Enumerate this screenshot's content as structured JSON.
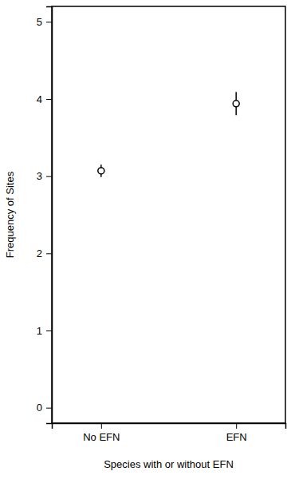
{
  "chart_data": {
    "type": "dot",
    "categories": [
      "No EFN",
      "EFN"
    ],
    "values": [
      3.07,
      3.94
    ],
    "errors": [
      0.08,
      0.15
    ],
    "x_label": "Species with or without EFN",
    "y_label": "Frequency of Sites",
    "ylim": [
      -0.2,
      5.2
    ],
    "yticks": [
      0,
      1,
      2,
      3,
      4,
      5
    ],
    "color": "#000000",
    "marker": "open-circle",
    "grid": false
  }
}
